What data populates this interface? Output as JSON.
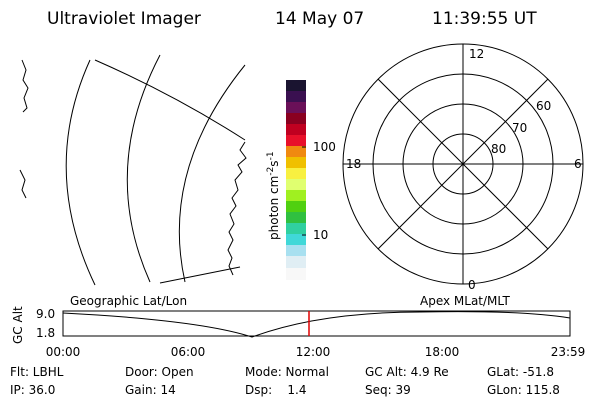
{
  "header": {
    "title": "Ultraviolet Imager",
    "date": "14 May 07",
    "time": "11:39:55 UT"
  },
  "colorbar": {
    "label": "photon cm",
    "exp1": "-2",
    "unit2": "s",
    "exp2": "-1",
    "ticks": [
      "100",
      "10"
    ]
  },
  "polar": {
    "labels": {
      "top": "12",
      "left": "18",
      "right": "6",
      "bottom": "0"
    },
    "rings": [
      "60",
      "70",
      "80"
    ]
  },
  "orbit": {
    "ylabel": "GC Alt",
    "yticks": [
      "9.0",
      "1.8"
    ],
    "left_title": "Geographic Lat/Lon",
    "right_title": "Apex MLat/MLT",
    "xticks": [
      "00:00",
      "06:00",
      "12:00",
      "18:00",
      "23:59"
    ]
  },
  "footer": {
    "rows": [
      [
        "Flt: LBHL",
        "Door: Open",
        "Mode: Normal",
        "GC Alt: 4.9 Re",
        "GLat: -51.8"
      ],
      [
        "IP: 36.0",
        "Gain: 14",
        "Dsp:    1.4",
        "Seq: 39",
        "GLon: 115.8"
      ]
    ]
  }
}
